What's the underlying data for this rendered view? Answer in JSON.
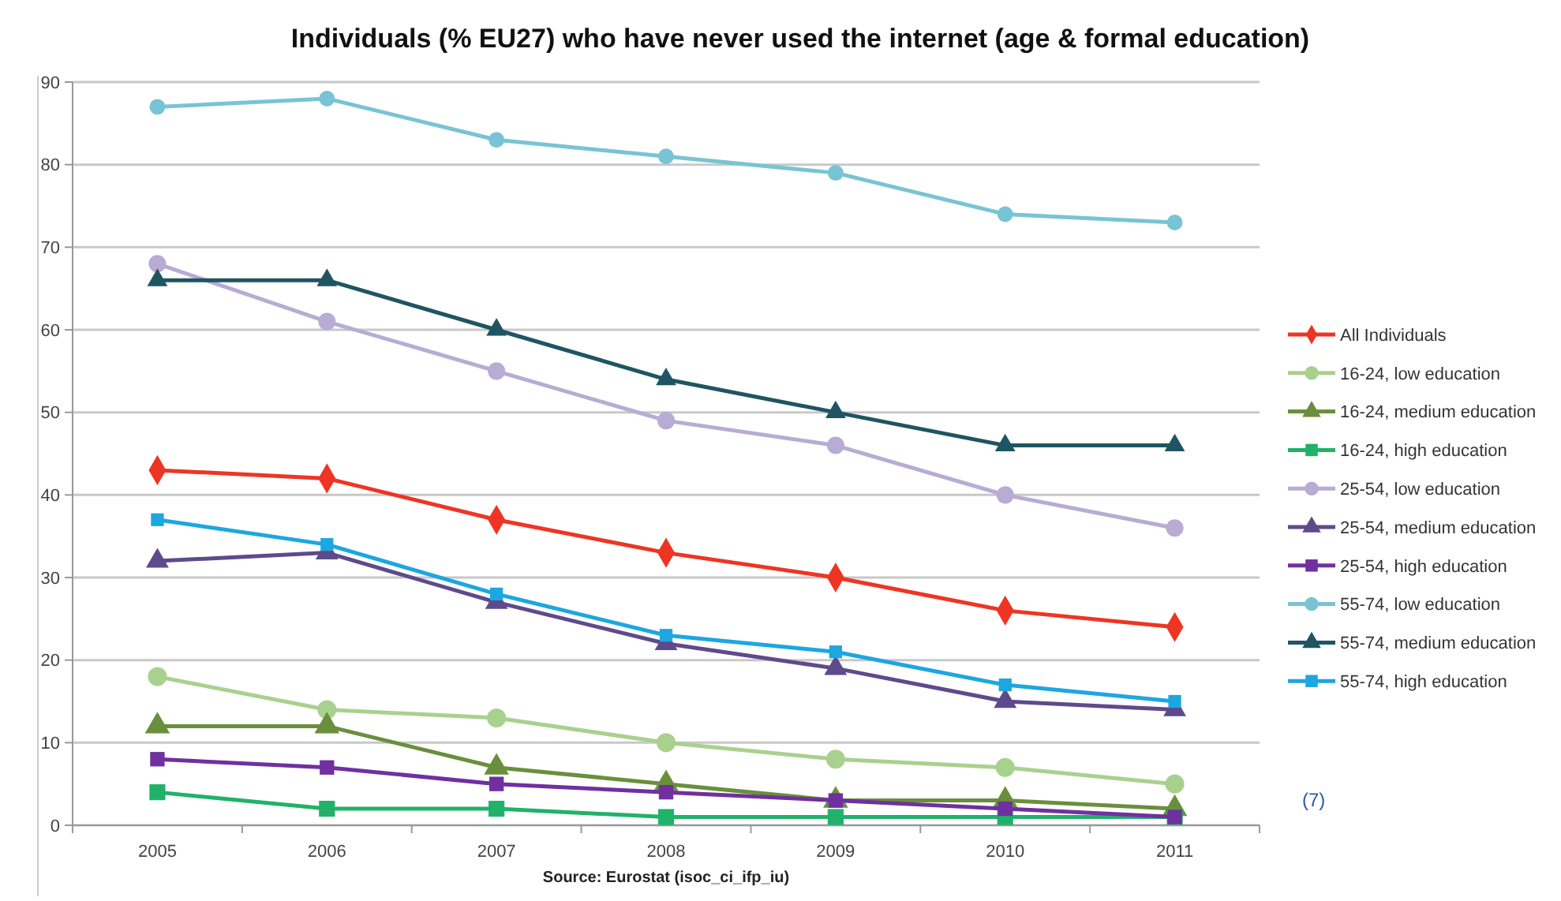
{
  "chart_data": {
    "type": "line",
    "title": "Individuals (% EU27) who have never used the internet (age & formal education)",
    "categories": [
      "2005",
      "2006",
      "2007",
      "2008",
      "2009",
      "2010",
      "2011"
    ],
    "ylim": [
      0,
      90
    ],
    "yticks": [
      0,
      10,
      20,
      30,
      40,
      50,
      60,
      70,
      80,
      90
    ],
    "grid": "y",
    "legend": "right",
    "line_style": "solid",
    "annotations": [
      "Source: Eurostat (isoc_ci_ifp_iu)",
      "(7)"
    ],
    "series": [
      {
        "name": "All Individuals",
        "color": "#ee3524",
        "marker": "diamond",
        "values": [
          43,
          42,
          37,
          33,
          30,
          26,
          24
        ]
      },
      {
        "name": "16-24, low education",
        "color": "#a9d18e",
        "marker": "circle",
        "values": [
          18,
          14,
          13,
          10,
          8,
          7,
          5
        ]
      },
      {
        "name": "16-24, medium education",
        "color": "#6a8f3c",
        "marker": "triangle",
        "values": [
          12,
          12,
          7,
          5,
          3,
          3,
          2
        ]
      },
      {
        "name": "16-24, high education",
        "color": "#21b26a",
        "marker": "square",
        "values": [
          4,
          2,
          2,
          1,
          1,
          1,
          1
        ]
      },
      {
        "name": "25-54, low education",
        "color": "#b8abd4",
        "marker": "circle",
        "values": [
          68,
          61,
          55,
          49,
          46,
          40,
          36
        ]
      },
      {
        "name": "25-54, medium education",
        "color": "#5e4a8b",
        "marker": "triangle",
        "values": [
          32,
          33,
          27,
          22,
          19,
          15,
          14
        ]
      },
      {
        "name": "25-54, high education",
        "color": "#7030a0",
        "marker": "square",
        "values": [
          8,
          7,
          5,
          4,
          3,
          2,
          1
        ]
      },
      {
        "name": "55-74, low education",
        "color": "#78c4d4",
        "marker": "circle",
        "values": [
          87,
          88,
          83,
          81,
          79,
          74,
          73
        ]
      },
      {
        "name": "55-74, medium education",
        "color": "#1f5563",
        "marker": "triangle",
        "values": [
          66,
          66,
          60,
          54,
          50,
          46,
          46
        ]
      },
      {
        "name": "55-74, high education",
        "color": "#1ca7e0",
        "marker": "square",
        "values": [
          37,
          34,
          28,
          23,
          21,
          17,
          15
        ]
      }
    ]
  }
}
